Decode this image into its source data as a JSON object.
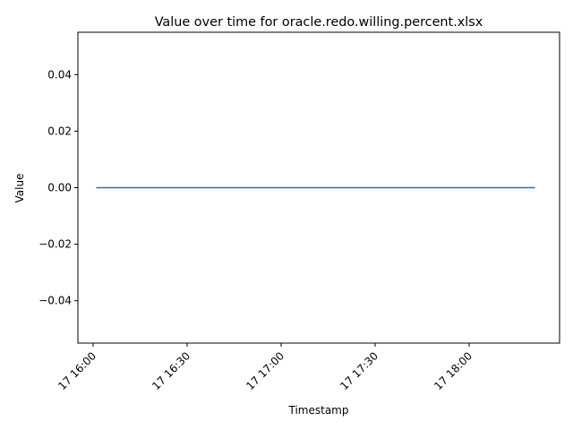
{
  "chart_data": {
    "type": "line",
    "title": "Value over time for oracle.redo.willing.percent.xlsx",
    "xlabel": "Timestamp",
    "ylabel": "Value",
    "x_tick_labels": [
      "17 16:00",
      "17 16:30",
      "17 17:00",
      "17 17:30",
      "17 18:00"
    ],
    "y_tick_labels": [
      "0.04",
      "0.02",
      "0.00",
      "−0.02",
      "−0.04"
    ],
    "y_ticks": [
      0.04,
      0.02,
      0.0,
      -0.02,
      -0.04
    ],
    "ylim": [
      -0.055,
      0.055
    ],
    "xlim": [
      "16:00",
      "18:24"
    ],
    "grid": false,
    "series": [
      {
        "color": "#1f77b4",
        "x": [
          "16:01",
          "18:21"
        ],
        "values": [
          0,
          0
        ]
      }
    ]
  }
}
